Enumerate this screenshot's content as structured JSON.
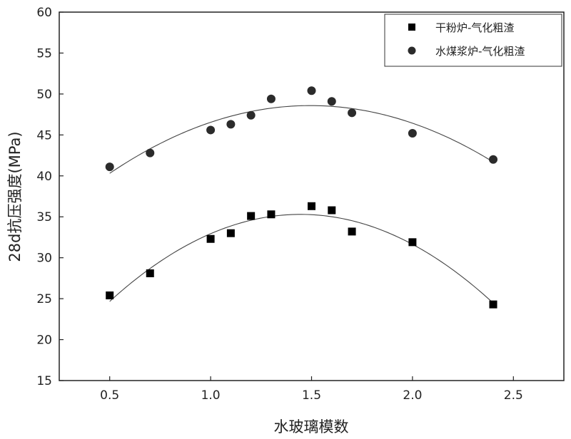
{
  "chart_data": {
    "type": "scatter",
    "xlabel": "水玻璃模数",
    "ylabel": "28d抗压强度(MPa)",
    "xlim": [
      0.25,
      2.75
    ],
    "ylim": [
      15,
      60
    ],
    "x_ticks": [
      0.5,
      1.0,
      1.5,
      2.0,
      2.5
    ],
    "x_tick_labels": [
      "0.5",
      "1.0",
      "1.5",
      "2.0",
      "2.5"
    ],
    "y_ticks": [
      15,
      20,
      25,
      30,
      35,
      40,
      45,
      50,
      55,
      60
    ],
    "y_tick_labels": [
      "15",
      "20",
      "25",
      "30",
      "35",
      "40",
      "45",
      "50",
      "55",
      "60"
    ],
    "legend_position": "top-right",
    "series": [
      {
        "name": "干粉炉-气化粗渣",
        "marker": "square",
        "color": "#000000",
        "x": [
          0.5,
          0.7,
          1.0,
          1.1,
          1.2,
          1.3,
          1.5,
          1.6,
          1.7,
          2.0,
          2.4
        ],
        "y": [
          25.4,
          28.1,
          32.3,
          33.0,
          35.1,
          35.3,
          36.3,
          35.8,
          33.2,
          31.9,
          24.3
        ],
        "fit": "quadratic"
      },
      {
        "name": "水煤浆炉-气化粗渣",
        "marker": "circle",
        "color": "#2b2b2b",
        "x": [
          0.5,
          0.7,
          1.0,
          1.1,
          1.2,
          1.3,
          1.5,
          1.6,
          1.7,
          2.0,
          2.4
        ],
        "y": [
          41.1,
          42.8,
          45.6,
          46.3,
          47.4,
          49.4,
          50.4,
          49.1,
          47.7,
          45.2,
          42.0
        ],
        "fit": "quadratic"
      }
    ]
  }
}
